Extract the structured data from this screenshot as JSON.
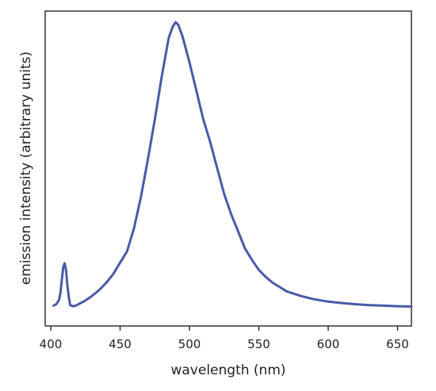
{
  "chart_data": {
    "type": "line",
    "title": "",
    "xlabel": "wavelength (nm)",
    "ylabel": "emission intensity (arbitrary units)",
    "xlim": [
      396,
      660
    ],
    "ylim": [
      0,
      1
    ],
    "x_ticks": [
      400,
      450,
      500,
      550,
      600,
      650
    ],
    "y_ticks_shown": false,
    "grid": false,
    "legend": "none",
    "series": [
      {
        "color": "#4a5aa8",
        "x": [
          402,
          404,
          406,
          407,
          408,
          409,
          410,
          411,
          412,
          413,
          414,
          416,
          418,
          420,
          425,
          430,
          435,
          440,
          445,
          450,
          455,
          460,
          465,
          470,
          475,
          480,
          485,
          488,
          490,
          492,
          495,
          500,
          505,
          510,
          515,
          520,
          525,
          530,
          535,
          540,
          545,
          550,
          555,
          560,
          565,
          570,
          575,
          580,
          590,
          600,
          610,
          620,
          630,
          640,
          650,
          660
        ],
        "values": [
          0.01,
          0.015,
          0.03,
          0.055,
          0.1,
          0.145,
          0.158,
          0.135,
          0.08,
          0.04,
          0.012,
          0.008,
          0.01,
          0.015,
          0.028,
          0.045,
          0.065,
          0.09,
          0.12,
          0.16,
          0.2,
          0.28,
          0.39,
          0.52,
          0.66,
          0.81,
          0.945,
          0.985,
          1.0,
          0.99,
          0.95,
          0.86,
          0.76,
          0.66,
          0.58,
          0.49,
          0.4,
          0.33,
          0.27,
          0.21,
          0.17,
          0.135,
          0.11,
          0.09,
          0.075,
          0.06,
          0.052,
          0.044,
          0.032,
          0.024,
          0.019,
          0.015,
          0.012,
          0.01,
          0.008,
          0.007
        ]
      }
    ]
  }
}
